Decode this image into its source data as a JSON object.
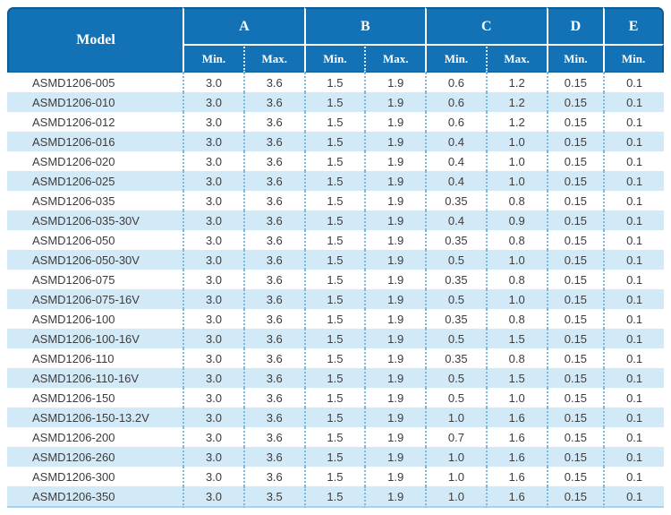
{
  "table": {
    "header": {
      "model": "Model",
      "groups": [
        "A",
        "B",
        "C",
        "D",
        "E"
      ],
      "sub": [
        "Min.",
        "Max.",
        "Min.",
        "Max.",
        "Min.",
        "Max.",
        "Min.",
        "Min."
      ]
    },
    "rows": [
      {
        "model": "ASMD1206-005",
        "values": [
          "3.0",
          "3.6",
          "1.5",
          "1.9",
          "0.6",
          "1.2",
          "0.15",
          "0.1"
        ]
      },
      {
        "model": "ASMD1206-010",
        "values": [
          "3.0",
          "3.6",
          "1.5",
          "1.9",
          "0.6",
          "1.2",
          "0.15",
          "0.1"
        ]
      },
      {
        "model": "ASMD1206-012",
        "values": [
          "3.0",
          "3.6",
          "1.5",
          "1.9",
          "0.6",
          "1.2",
          "0.15",
          "0.1"
        ]
      },
      {
        "model": "ASMD1206-016",
        "values": [
          "3.0",
          "3.6",
          "1.5",
          "1.9",
          "0.4",
          "1.0",
          "0.15",
          "0.1"
        ]
      },
      {
        "model": "ASMD1206-020",
        "values": [
          "3.0",
          "3.6",
          "1.5",
          "1.9",
          "0.4",
          "1.0",
          "0.15",
          "0.1"
        ]
      },
      {
        "model": "ASMD1206-025",
        "values": [
          "3.0",
          "3.6",
          "1.5",
          "1.9",
          "0.4",
          "1.0",
          "0.15",
          "0.1"
        ]
      },
      {
        "model": "ASMD1206-035",
        "values": [
          "3.0",
          "3.6",
          "1.5",
          "1.9",
          "0.35",
          "0.8",
          "0.15",
          "0.1"
        ]
      },
      {
        "model": "ASMD1206-035-30V",
        "values": [
          "3.0",
          "3.6",
          "1.5",
          "1.9",
          "0.4",
          "0.9",
          "0.15",
          "0.1"
        ]
      },
      {
        "model": "ASMD1206-050",
        "values": [
          "3.0",
          "3.6",
          "1.5",
          "1.9",
          "0.35",
          "0.8",
          "0.15",
          "0.1"
        ]
      },
      {
        "model": "ASMD1206-050-30V",
        "values": [
          "3.0",
          "3.6",
          "1.5",
          "1.9",
          "0.5",
          "1.0",
          "0.15",
          "0.1"
        ]
      },
      {
        "model": "ASMD1206-075",
        "values": [
          "3.0",
          "3.6",
          "1.5",
          "1.9",
          "0.35",
          "0.8",
          "0.15",
          "0.1"
        ]
      },
      {
        "model": "ASMD1206-075-16V",
        "values": [
          "3.0",
          "3.6",
          "1.5",
          "1.9",
          "0.5",
          "1.0",
          "0.15",
          "0.1"
        ]
      },
      {
        "model": "ASMD1206-100",
        "values": [
          "3.0",
          "3.6",
          "1.5",
          "1.9",
          "0.35",
          "0.8",
          "0.15",
          "0.1"
        ]
      },
      {
        "model": "ASMD1206-100-16V",
        "values": [
          "3.0",
          "3.6",
          "1.5",
          "1.9",
          "0.5",
          "1.5",
          "0.15",
          "0.1"
        ]
      },
      {
        "model": "ASMD1206-110",
        "values": [
          "3.0",
          "3.6",
          "1.5",
          "1.9",
          "0.35",
          "0.8",
          "0.15",
          "0.1"
        ]
      },
      {
        "model": "ASMD1206-110-16V",
        "values": [
          "3.0",
          "3.6",
          "1.5",
          "1.9",
          "0.5",
          "1.5",
          "0.15",
          "0.1"
        ]
      },
      {
        "model": "ASMD1206-150",
        "values": [
          "3.0",
          "3.6",
          "1.5",
          "1.9",
          "0.5",
          "1.0",
          "0.15",
          "0.1"
        ]
      },
      {
        "model": "ASMD1206-150-13.2V",
        "values": [
          "3.0",
          "3.6",
          "1.5",
          "1.9",
          "1.0",
          "1.6",
          "0.15",
          "0.1"
        ]
      },
      {
        "model": "ASMD1206-200",
        "values": [
          "3.0",
          "3.6",
          "1.5",
          "1.9",
          "0.7",
          "1.6",
          "0.15",
          "0.1"
        ]
      },
      {
        "model": "ASMD1206-260",
        "values": [
          "3.0",
          "3.6",
          "1.5",
          "1.9",
          "1.0",
          "1.6",
          "0.15",
          "0.1"
        ]
      },
      {
        "model": "ASMD1206-300",
        "values": [
          "3.0",
          "3.6",
          "1.5",
          "1.9",
          "1.0",
          "1.6",
          "0.15",
          "0.1"
        ]
      },
      {
        "model": "ASMD1206-350",
        "values": [
          "3.0",
          "3.5",
          "1.5",
          "1.9",
          "1.0",
          "1.6",
          "0.15",
          "0.1"
        ]
      }
    ]
  },
  "colors": {
    "header_bg": "#1272b5",
    "header_outline": "#0b5b94",
    "header_text": "#ffffff",
    "row_alt_bg": "#d2eaf8",
    "dotted_separator": "#7db9de",
    "body_text": "#3c3c3c",
    "bottom_border": "#a6d4ee"
  }
}
